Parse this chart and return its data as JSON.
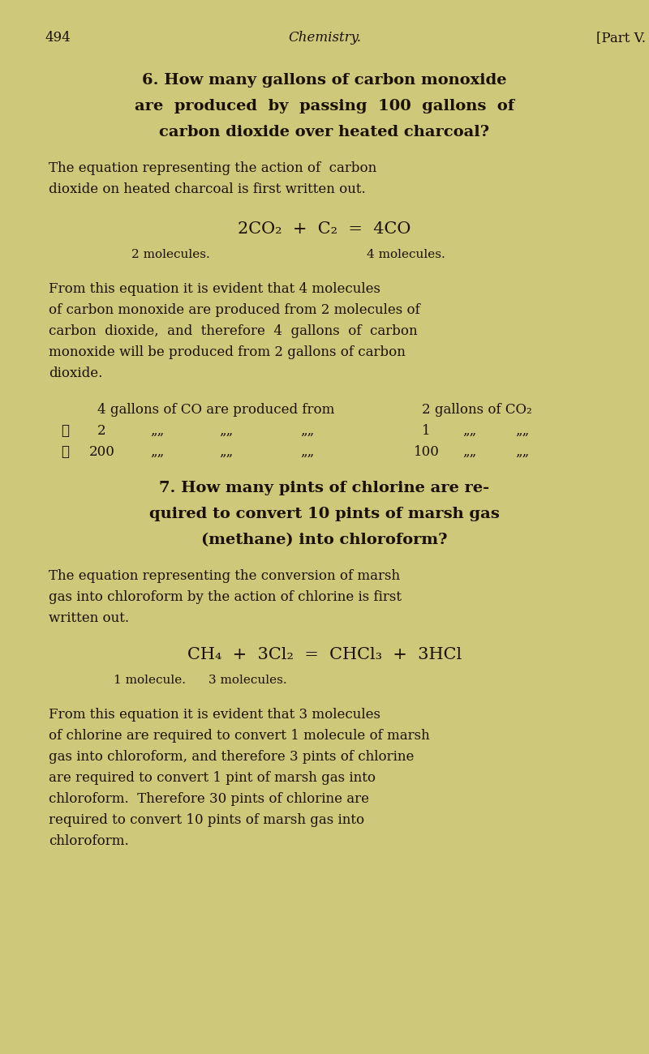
{
  "bg_color": "#cdc87a",
  "text_color": "#1a1000",
  "page_num": "494",
  "header_center": "Chemistry.",
  "header_right": "[Part V.",
  "q6_line1": "6. How many gallons of carbon monoxide",
  "q6_line2": "are  produced  by  passing  100  gallons  of",
  "q6_line3": "carbon dioxide over heated charcoal?",
  "q6_p1_line1": "The equation representing the action of  carbon",
  "q6_p1_line2": "dioxide on heated charcoal is first written out.",
  "q6_eq": "2CO₂  +  C₂  =  4CO",
  "q6_eq_sub1": "2 molecules.",
  "q6_eq_sub2": "4 molecules.",
  "q6_p2_line1": "From this equation it is evident that 4 molecules",
  "q6_p2_line2": "of carbon monoxide are produced from 2 molecules of",
  "q6_p2_line3": "carbon  dioxide,  and  therefore  4  gallons  of  carbon",
  "q6_p2_line4": "monoxide will be produced from 2 gallons of carbon",
  "q6_p2_line5": "dioxide.",
  "q6_t1": "4 gallons of CO are produced from",
  "q6_t1r": "2 gallons of CO₂",
  "q6_t2l": "∴",
  "q6_t2n": "2",
  "q6_t2d1": "„„",
  "q6_t2d2": "„„",
  "q6_t2d3": "„„",
  "q6_t2rn": "1",
  "q6_t2rd1": "„„",
  "q6_t2rd2": "„„",
  "q6_t3l": "∴",
  "q6_t3n": "200",
  "q6_t3d1": "„„",
  "q6_t3d2": "„„",
  "q6_t3d3": "„„",
  "q6_t3rn": "100",
  "q6_t3rd1": "„„",
  "q6_t3rd2": "„„",
  "q7_line1": "7. How many pints of chlorine are re-",
  "q7_line2": "quired to convert 10 pints of marsh gas",
  "q7_line3": "(methane) into chloroform?",
  "q7_p1_line1": "The equation representing the conversion of marsh",
  "q7_p1_line2": "gas into chloroform by the action of chlorine is first",
  "q7_p1_line3": "written out.",
  "q7_eq": "CH₄  +  3Cl₂  =  CHCl₃  +  3HCl",
  "q7_eq_sub1": "1 molecule.",
  "q7_eq_sub2": "3 molecules.",
  "q7_p2_line1": "From this equation it is evident that 3 molecules",
  "q7_p2_line2": "of chlorine are required to convert 1 molecule of marsh",
  "q7_p2_line3": "gas into chloroform, and therefore 3 pints of chlorine",
  "q7_p2_line4": "are required to convert 1 pint of marsh gas into",
  "q7_p2_line5": "chloroform.  Therefore 30 pints of chlorine are",
  "q7_p2_line6": "required to convert 10 pints of marsh gas into",
  "q7_p2_line7": "chloroform."
}
